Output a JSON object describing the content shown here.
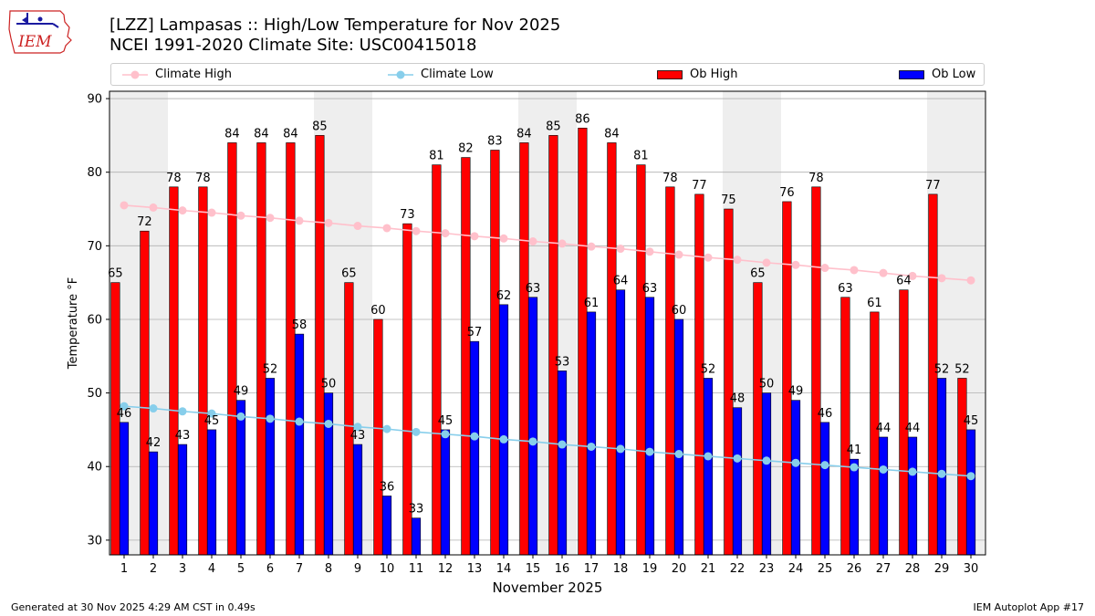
{
  "header": {
    "logo_text": "IEM",
    "title_line1": "[LZZ] Lampasas :: High/Low Temperature for Nov 2025",
    "title_line2": "NCEI 1991-2020 Climate Site: USC00415018"
  },
  "legend": {
    "climate_high": "Climate High",
    "climate_low": "Climate Low",
    "ob_high": "Ob High",
    "ob_low": "Ob Low"
  },
  "footer": {
    "generated": "Generated at 30 Nov 2025 4:29 AM CST in 0.49s",
    "app": "IEM Autoplot App #17"
  },
  "colors": {
    "ob_high": "#ff0000",
    "ob_low": "#0000ff",
    "climate_high": "#ffc0cb",
    "climate_low": "#87ceeb",
    "weekend_shade": "#eeeeee",
    "grid": "#b0b0b0"
  },
  "chart_data": {
    "type": "bar",
    "title": "[LZZ] Lampasas :: High/Low Temperature for Nov 2025",
    "xlabel": "November 2025",
    "ylabel": "Temperature °F",
    "ylim": [
      28,
      91
    ],
    "yticks": [
      30,
      40,
      50,
      60,
      70,
      80,
      90
    ],
    "grid": true,
    "legend_position": "top",
    "categories": [
      "1",
      "2",
      "3",
      "4",
      "5",
      "6",
      "7",
      "8",
      "9",
      "10",
      "11",
      "12",
      "13",
      "14",
      "15",
      "16",
      "17",
      "18",
      "19",
      "20",
      "21",
      "22",
      "23",
      "24",
      "25",
      "26",
      "27",
      "28",
      "29",
      "30"
    ],
    "shaded_days": [
      1,
      2,
      8,
      9,
      15,
      16,
      22,
      23,
      29,
      30
    ],
    "series": [
      {
        "name": "Ob High",
        "type": "bar",
        "values": [
          65,
          72,
          78,
          78,
          84,
          84,
          84,
          85,
          65,
          60,
          73,
          81,
          82,
          83,
          84,
          85,
          86,
          84,
          81,
          78,
          77,
          75,
          65,
          76,
          78,
          63,
          61,
          64,
          77,
          52
        ],
        "labels": [
          "65",
          "72",
          "78",
          "78",
          "84",
          "84",
          "84",
          "85",
          "65",
          "60",
          "73",
          "81",
          "82",
          "83",
          "84",
          "85",
          "86",
          "84",
          "81",
          "78",
          "77",
          "75",
          "65",
          "76",
          "78",
          "63",
          "61",
          "64",
          "77",
          "52"
        ]
      },
      {
        "name": "Ob Low",
        "type": "bar",
        "values": [
          46,
          42,
          43,
          45,
          49,
          52,
          58,
          50,
          43,
          36,
          33,
          45,
          57,
          62,
          63,
          53,
          61,
          64,
          63,
          60,
          52,
          48,
          50,
          49,
          46,
          41,
          44,
          44,
          52,
          45
        ],
        "labels": [
          "46",
          "42",
          "43",
          "45",
          "49",
          "52",
          "58",
          "50",
          "43",
          "36",
          "33",
          "45",
          "57",
          "62",
          "63",
          "53",
          "61",
          "64",
          "63",
          "60",
          "52",
          "48",
          "50",
          "49",
          "46",
          "41",
          "44",
          "44",
          "52",
          "45"
        ]
      },
      {
        "name": "Climate High",
        "type": "line",
        "values": [
          75.5,
          75.2,
          74.8,
          74.5,
          74.1,
          73.8,
          73.4,
          73.1,
          72.7,
          72.4,
          72.0,
          71.7,
          71.3,
          71.0,
          70.6,
          70.3,
          69.9,
          69.6,
          69.2,
          68.8,
          68.4,
          68.1,
          67.7,
          67.4,
          67.0,
          66.7,
          66.3,
          65.9,
          65.6,
          65.3
        ]
      },
      {
        "name": "Climate Low",
        "type": "line",
        "values": [
          48.2,
          47.9,
          47.5,
          47.2,
          46.8,
          46.5,
          46.1,
          45.8,
          45.4,
          45.1,
          44.7,
          44.4,
          44.1,
          43.7,
          43.4,
          43.0,
          42.7,
          42.4,
          42.0,
          41.7,
          41.4,
          41.1,
          40.8,
          40.5,
          40.2,
          39.9,
          39.6,
          39.3,
          39.0,
          38.7
        ]
      }
    ]
  }
}
